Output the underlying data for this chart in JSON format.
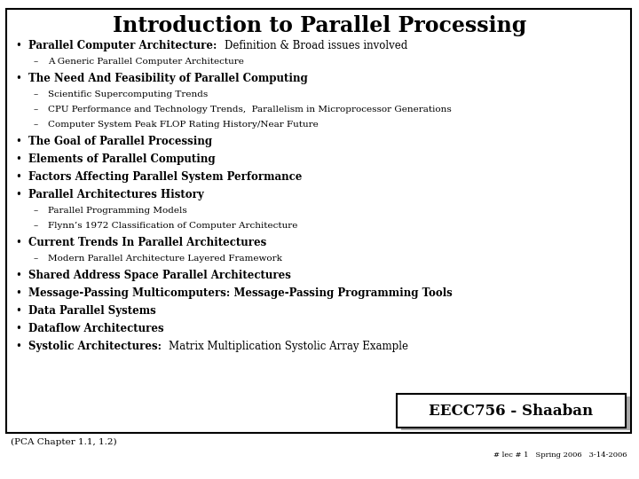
{
  "title": "Introduction to Parallel Processing",
  "bg_color": "#ffffff",
  "border_color": "#000000",
  "footer_left": "(PCA Chapter 1.1, 1.2)",
  "footer_right_top": "EECC756 - Shaaban",
  "footer_right_bottom": "# lec # 1   Spring 2006   3-14-2006",
  "items": [
    {
      "level": 1,
      "parts": [
        {
          "text": "Parallel Computer Architecture:  ",
          "bold": true
        },
        {
          "text": "Definition & Broad issues involved",
          "bold": false
        }
      ]
    },
    {
      "level": 2,
      "parts": [
        {
          "text": "A Generic Parallel Computer Architecture",
          "bold": false
        }
      ]
    },
    {
      "level": 1,
      "parts": [
        {
          "text": "The Need And Feasibility of Parallel Computing",
          "bold": true
        }
      ]
    },
    {
      "level": 2,
      "parts": [
        {
          "text": "Scientific Supercomputing Trends",
          "bold": false
        }
      ]
    },
    {
      "level": 2,
      "parts": [
        {
          "text": "CPU Performance and Technology Trends,  Parallelism in Microprocessor Generations",
          "bold": false
        }
      ]
    },
    {
      "level": 2,
      "parts": [
        {
          "text": "Computer System Peak FLOP Rating History/Near Future",
          "bold": false
        }
      ]
    },
    {
      "level": 1,
      "parts": [
        {
          "text": "The Goal of Parallel Processing",
          "bold": true
        }
      ]
    },
    {
      "level": 1,
      "parts": [
        {
          "text": "Elements of Parallel Computing",
          "bold": true
        }
      ]
    },
    {
      "level": 1,
      "parts": [
        {
          "text": "Factors Affecting Parallel System Performance",
          "bold": true
        }
      ]
    },
    {
      "level": 1,
      "parts": [
        {
          "text": "Parallel Architectures History",
          "bold": true
        }
      ]
    },
    {
      "level": 2,
      "parts": [
        {
          "text": "Parallel Programming Models",
          "bold": false
        }
      ]
    },
    {
      "level": 2,
      "parts": [
        {
          "text": "Flynn’s 1972 Classification of Computer Architecture",
          "bold": false
        }
      ]
    },
    {
      "level": 1,
      "parts": [
        {
          "text": "Current Trends In Parallel Architectures",
          "bold": true
        }
      ]
    },
    {
      "level": 2,
      "parts": [
        {
          "text": "Modern Parallel Architecture Layered Framework",
          "bold": false
        }
      ]
    },
    {
      "level": 1,
      "parts": [
        {
          "text": "Shared Address Space Parallel Architectures",
          "bold": true
        }
      ]
    },
    {
      "level": 1,
      "parts": [
        {
          "text": "Message-Passing Multicomputers: Message-Passing Programming Tools",
          "bold": true
        }
      ]
    },
    {
      "level": 1,
      "parts": [
        {
          "text": "Data Parallel Systems",
          "bold": true
        }
      ]
    },
    {
      "level": 1,
      "parts": [
        {
          "text": "Dataflow Architectures",
          "bold": true
        }
      ]
    },
    {
      "level": 1,
      "parts": [
        {
          "text": "Systolic Architectures:  ",
          "bold": true
        },
        {
          "text": "Matrix Multiplication Systolic Array Example",
          "bold": false
        }
      ]
    }
  ],
  "title_fontsize": 17,
  "fs_l1": 8.5,
  "fs_l2": 7.5,
  "lh_l1": 20,
  "lh_l2": 17
}
